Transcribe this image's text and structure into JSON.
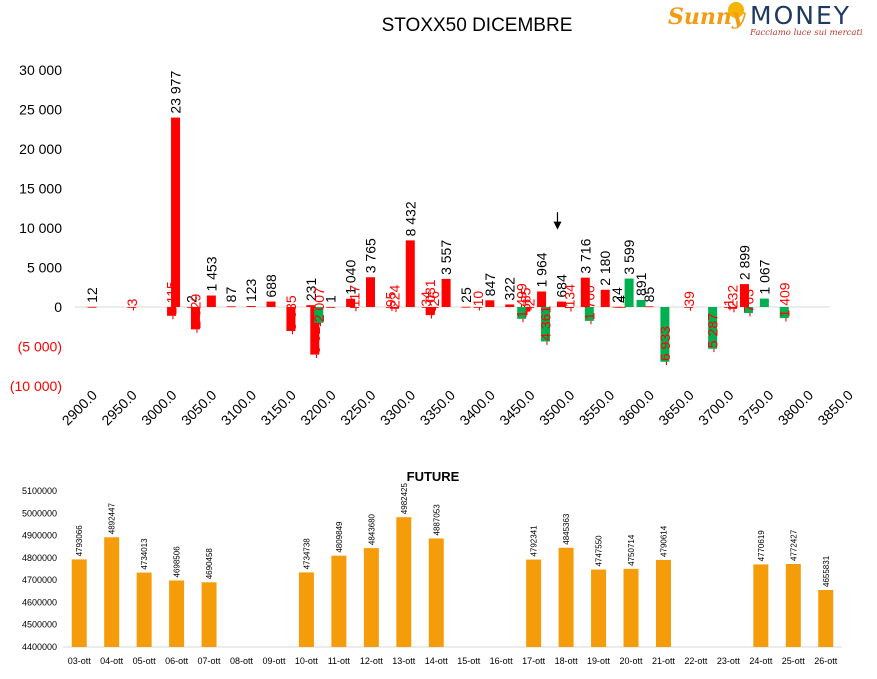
{
  "brand": {
    "name_part1": "Sunny",
    "name_part2": "MONEY",
    "tagline": "Facciamo luce sui mercati"
  },
  "colors": {
    "positive": "#ff0000",
    "negative": "#00b050",
    "future": "#f59c0b",
    "neg_tick": "#ff0000",
    "text": "#000000"
  },
  "chart_data": [
    {
      "type": "bar",
      "title": "STOXX50 DICEMBRE",
      "ylim": [
        -10000,
        30000
      ],
      "yticks": [
        30000,
        25000,
        20000,
        15000,
        10000,
        5000,
        0,
        -5000,
        -10000
      ],
      "ytick_labels": [
        "30 000",
        "25 000",
        "20 000",
        "15 000",
        "10 000",
        "5 000",
        "0",
        "(5 000)",
        "(10 000)"
      ],
      "categories": [
        "2900.0",
        "2950.0",
        "3000.0",
        "3050.0",
        "3100.0",
        "3150.0",
        "3200.0",
        "3250.0",
        "3300.0",
        "3350.0",
        "3400.0",
        "3450.0",
        "3500.0",
        "3550.0",
        "3600.0",
        "3650.0",
        "3700.0",
        "3750.0",
        "3800.0",
        "3850.0"
      ],
      "series": [
        {
          "color": "red",
          "bars": [
            {
              "x": 2900,
              "v": 12,
              "label": "12"
            },
            {
              "x": 2950,
              "v": -3,
              "label": "-3"
            },
            {
              "x": 3000,
              "v": -1115,
              "label": "-1 115"
            },
            {
              "x": 3005,
              "v": 23977,
              "label": "23 977"
            },
            {
              "x": 3025,
              "v": 2,
              "label": "2"
            },
            {
              "x": 3030,
              "v": -2829,
              "label": "-2 829"
            },
            {
              "x": 3050,
              "v": 1453,
              "label": "1 453"
            },
            {
              "x": 3075,
              "v": 87,
              "label": "87"
            },
            {
              "x": 3100,
              "v": 123,
              "label": "123"
            },
            {
              "x": 3125,
              "v": 688,
              "label": "688"
            },
            {
              "x": 3150,
              "v": -3035,
              "label": "-3 035"
            },
            {
              "x": 3175,
              "v": 231,
              "label": "231"
            },
            {
              "x": 3180,
              "v": -6023,
              "label": "-6 023"
            },
            {
              "x": 3200,
              "v": 1,
              "label": "1"
            },
            {
              "x": 3225,
              "v": 1040,
              "label": "1 040"
            },
            {
              "x": 3230,
              "v": -117,
              "label": "-117"
            },
            {
              "x": 3250,
              "v": 3765,
              "label": "3 765"
            },
            {
              "x": 3275,
              "v": -95,
              "label": "-95"
            },
            {
              "x": 3280,
              "v": -224,
              "label": "-224"
            },
            {
              "x": 3300,
              "v": 8432,
              "label": "8 432"
            },
            {
              "x": 3320,
              "v": -34,
              "label": "-34"
            },
            {
              "x": 3325,
              "v": -1031,
              "label": "-1 031"
            },
            {
              "x": 3330,
              "v": -26,
              "label": "-26"
            },
            {
              "x": 3345,
              "v": 3557,
              "label": "3 557"
            },
            {
              "x": 3370,
              "v": 25,
              "label": "25"
            },
            {
              "x": 3385,
              "v": -10,
              "label": "-10"
            },
            {
              "x": 3400,
              "v": 847,
              "label": "847"
            },
            {
              "x": 3425,
              "v": 322,
              "label": "322"
            },
            {
              "x": 3445,
              "v": -585,
              "label": "-585"
            },
            {
              "x": 3450,
              "v": -2,
              "label": "-2"
            },
            {
              "x": 3465,
              "v": 1964,
              "label": "1 964"
            },
            {
              "x": 3490,
              "v": 684,
              "label": "684"
            },
            {
              "x": 3500,
              "v": -134,
              "label": "-134"
            },
            {
              "x": 3520,
              "v": 3716,
              "label": "3 716"
            },
            {
              "x": 3545,
              "v": 2180,
              "label": "2 180"
            },
            {
              "x": 3560,
              "v": 24,
              "label": "24"
            },
            {
              "x": 3565,
              "v": 4,
              "label": "4"
            },
            {
              "x": 3600,
              "v": 85,
              "label": "85"
            },
            {
              "x": 3650,
              "v": -39,
              "label": "-39"
            },
            {
              "x": 3700,
              "v": -1,
              "label": "-1"
            },
            {
              "x": 3705,
              "v": -232,
              "label": "-232"
            },
            {
              "x": 3720,
              "v": 2899,
              "label": "2 899"
            }
          ]
        },
        {
          "color": "green",
          "bars": [
            {
              "x": 3185,
              "v": -2007,
              "label": "-2 007"
            },
            {
              "x": 3440,
              "v": -1499,
              "label": "-1 499"
            },
            {
              "x": 3470,
              "v": -4361,
              "label": "-4 361"
            },
            {
              "x": 3525,
              "v": -1760,
              "label": "-1 760"
            },
            {
              "x": 3575,
              "v": 3599,
              "label": "3 599"
            },
            {
              "x": 3590,
              "v": 891,
              "label": "891"
            },
            {
              "x": 3620,
              "v": -6933,
              "label": "-6 933"
            },
            {
              "x": 3680,
              "v": -5287,
              "label": "-5 287"
            },
            {
              "x": 3725,
              "v": -763,
              "label": "-763"
            },
            {
              "x": 3745,
              "v": 1067,
              "label": "1 067"
            },
            {
              "x": 3770,
              "v": -1409,
              "label": "-1 409"
            }
          ]
        }
      ],
      "annotations": [
        {
          "type": "arrow",
          "x": 3485,
          "from": 12000,
          "to": 9800
        }
      ]
    },
    {
      "type": "bar",
      "title": "FUTURE",
      "ylim": [
        4400000,
        5100000
      ],
      "yticks": [
        5100000,
        5000000,
        4900000,
        4800000,
        4700000,
        4600000,
        4500000,
        4400000
      ],
      "ytick_labels": [
        "5100000",
        "5000000",
        "4900000",
        "4800000",
        "4700000",
        "4600000",
        "4500000",
        "4400000"
      ],
      "categories": [
        "03-ott",
        "04-ott",
        "05-ott",
        "06-ott",
        "07-ott",
        "08-ott",
        "09-ott",
        "10-ott",
        "11-ott",
        "12-ott",
        "13-ott",
        "14-ott",
        "15-ott",
        "16-ott",
        "17-ott",
        "18-ott",
        "19-ott",
        "20-ott",
        "21-ott",
        "22-ott",
        "23-ott",
        "24-ott",
        "25-ott",
        "26-ott"
      ],
      "values": [
        4793066,
        4892447,
        4734013,
        4698506,
        4690458,
        null,
        null,
        4734738,
        4809849,
        4843680,
        4982425,
        4887053,
        null,
        null,
        4792341,
        4845363,
        4747550,
        4750714,
        4790614,
        null,
        null,
        4770619,
        4772427,
        4655831
      ],
      "value_labels": [
        "4793066",
        "4892447",
        "4734013",
        "4698506",
        "4690458",
        "",
        "",
        "4734738",
        "4809849",
        "4843680",
        "4982425",
        "4887053",
        "",
        "",
        "4792341",
        "4845363",
        "4747550",
        "4750714",
        "4790614",
        "",
        "",
        "4770619",
        "4772427",
        "4655831"
      ]
    }
  ]
}
